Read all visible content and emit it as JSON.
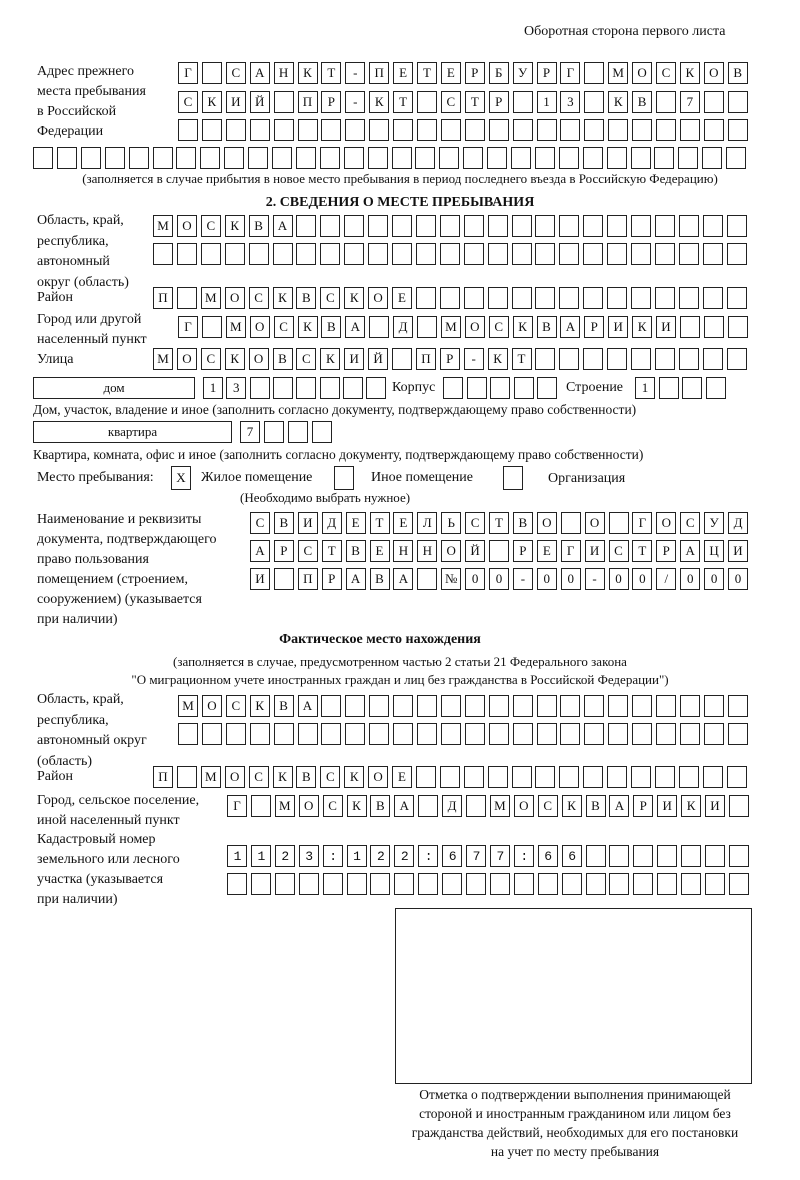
{
  "header": "Оборотная сторона первого листа",
  "prev_address": {
    "label": "Адрес прежнего\nместа пребывания\nв Российской\nФедерации",
    "rows": [
      "Г САНКТ-ПЕТЕРБУРГ МОСКОВ",
      "СКИЙ ПР-КТ СТР 13 КВ 7  ",
      "",
      ""
    ],
    "note": "(заполняется в случае прибытия в новое место пребывания в период последнего въезда в Российскую Федерацию)"
  },
  "section2": {
    "title": "2. СВЕДЕНИЯ О МЕСТЕ ПРЕБЫВАНИЯ",
    "region_label": "Область, край,\nреспублика,\nавтономный\nокруг (область)",
    "region_rows": [
      "МОСКВА",
      ""
    ],
    "district_label": "Район",
    "district": "П МОСКВСКОЕ",
    "city_label": "Город или другой\nнаселенный пункт",
    "city": "Г МОСКВА Д МОСКВАРИКИ",
    "street_label": "Улица",
    "street": "МОСКОВСКИЙ ПР-КТ",
    "house_type": "дом",
    "house_number": "13",
    "korpus_label": "Корпус",
    "korpus": "",
    "stroenie_label": "Строение",
    "stroenie": "1",
    "house_note": "Дом, участок, владение и иное (заполнить согласно документу, подтверждающему право собственности)",
    "apt_type": "квартира",
    "apt_number": "7",
    "apt_note": "Квартира, комната, офис и иное (заполнить согласно документу, подтверждающему право собственности)",
    "stay_label": "Место пребывания:",
    "stay_options": [
      {
        "label": "Жилое помещение",
        "mark": "X",
        "checked": true
      },
      {
        "label": "Иное помещение",
        "mark": "",
        "checked": false
      },
      {
        "label": "Организация",
        "mark": "",
        "checked": false
      }
    ],
    "stay_note": "(Необходимо выбрать нужное)",
    "doc_label": "Наименование и реквизиты\nдокумента, подтверждающего\nправо пользования\nпомещением (строением,\nсооружением) (указывается\nпри наличии)",
    "doc_rows": [
      "СВИДЕТЕЛЬСТВО О ГОСУД",
      "АРСТВЕННОЙ РЕГИСТРАЦИ",
      "И ПРАВА №00-00-00/000"
    ]
  },
  "actual": {
    "title": "Фактическое место нахождения",
    "note": "(заполняется в случае, предусмотренном частью 2 статьи 21 Федерального закона\n\"О миграционном учете иностранных граждан и лиц без гражданства в Российской Федерации\")",
    "region_label": "Область, край,\nреспублика,\nавтономный округ\n(область)",
    "region_rows": [
      "МОСКВА",
      ""
    ],
    "district_label": "Район",
    "district": "П МОСКВСКОЕ",
    "city_label": "Город, сельское поселение,\nиной населенный пункт",
    "city": "Г МОСКВА Д МОСКВАРИКИ",
    "cadastral_label": "Кадастровый номер\nземельного или лесного\nучастка (указывается\nпри наличии)",
    "cadastral_rows": [
      "1123:122:677:66",
      ""
    ]
  },
  "stamp": {
    "caption": "Отметка о подтверждении выполнения принимающей\nстороной и иностранным гражданином или лицом без\nгражданства действий, необходимых для его постановки\nна учет по месту пребывания"
  }
}
